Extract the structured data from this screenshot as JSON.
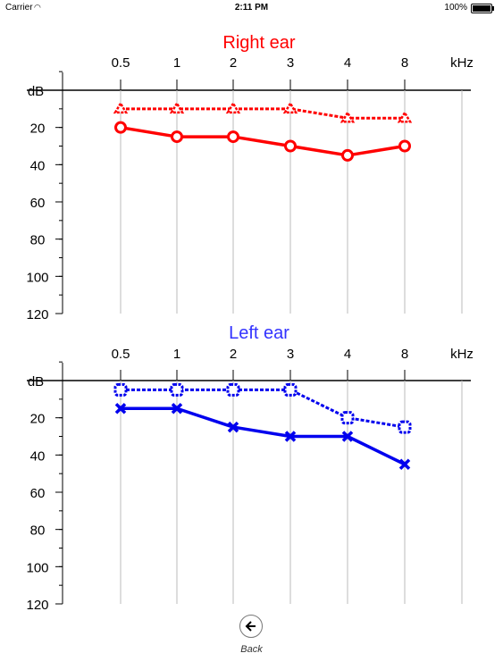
{
  "status_bar": {
    "carrier": "Carrier",
    "wifi_icon": "wifi-icon",
    "time": "2:11 PM",
    "battery": "100%",
    "battery_icon": "battery-icon"
  },
  "back": {
    "label": "Back",
    "icon": "arrow-left-circle-icon"
  },
  "chart_data": [
    {
      "type": "line",
      "title": "Right ear",
      "title_color": "#ff0000",
      "xlabel": "kHz",
      "ylabel": "dB",
      "categories": [
        "0.5",
        "1",
        "2",
        "3",
        "4",
        "8"
      ],
      "yticks": [
        "20",
        "40",
        "60",
        "80",
        "100",
        "120"
      ],
      "ylim": [
        0,
        120
      ],
      "y_inverted": true,
      "grid": true,
      "series": [
        {
          "values": [
            10,
            10,
            10,
            10,
            15,
            15
          ],
          "marker": "triangle",
          "line_style": "dashed",
          "color": "#ff0000"
        },
        {
          "values": [
            20,
            25,
            25,
            30,
            35,
            30
          ],
          "marker": "circle",
          "line_style": "solid",
          "color": "#ff0000"
        }
      ]
    },
    {
      "type": "line",
      "title": "Left ear",
      "title_color": "#3333ff",
      "xlabel": "kHz",
      "ylabel": "dB",
      "categories": [
        "0.5",
        "1",
        "2",
        "3",
        "4",
        "8"
      ],
      "yticks": [
        "20",
        "40",
        "60",
        "80",
        "100",
        "120"
      ],
      "ylim": [
        0,
        120
      ],
      "y_inverted": true,
      "grid": true,
      "series": [
        {
          "values": [
            5,
            5,
            5,
            5,
            20,
            25
          ],
          "marker": "square",
          "line_style": "dashed",
          "color": "#0000ee"
        },
        {
          "values": [
            15,
            15,
            25,
            30,
            30,
            45
          ],
          "marker": "x",
          "line_style": "solid",
          "color": "#0000ee"
        }
      ]
    }
  ]
}
